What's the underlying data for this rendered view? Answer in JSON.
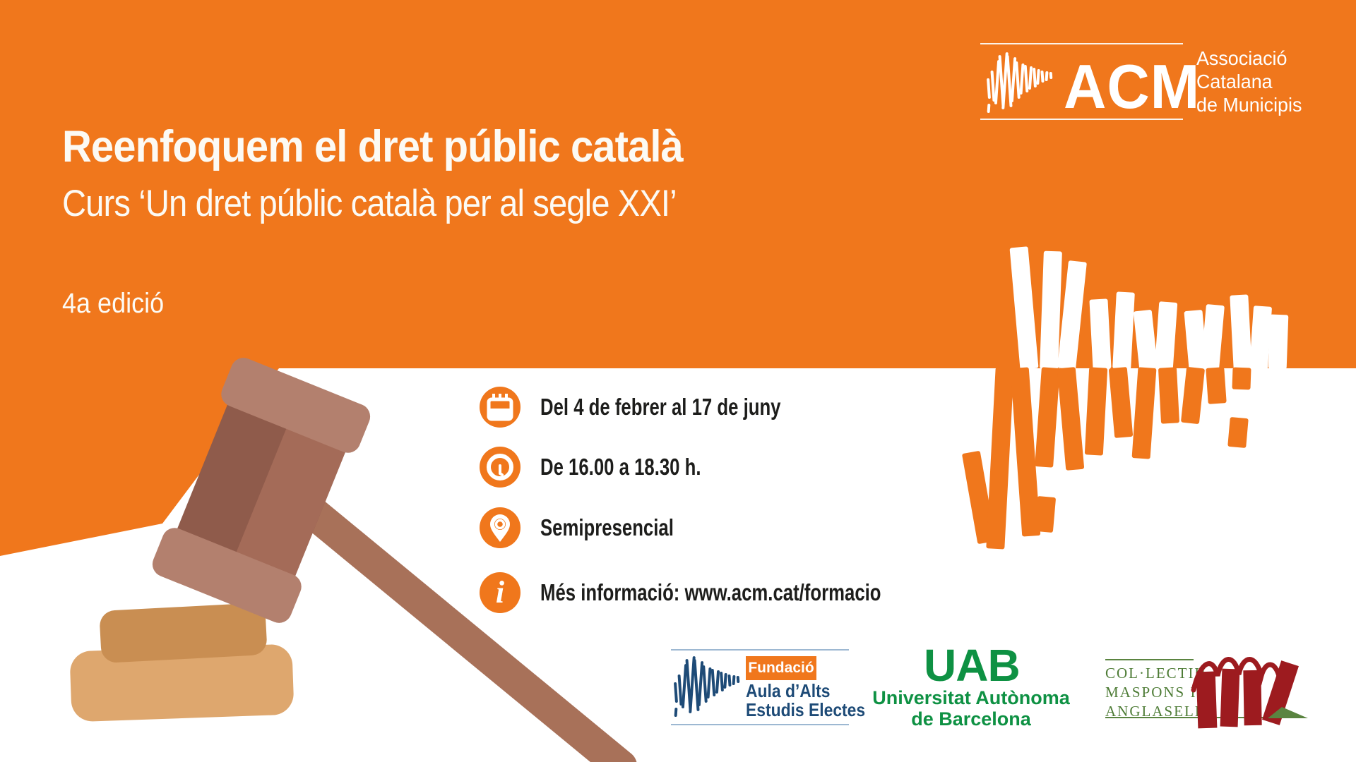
{
  "banner": {
    "title": "Reenfoquem el dret públic català",
    "subtitle": "Curs ‘Un dret públic català per al segle XXI’",
    "edition": "4a edició"
  },
  "acm_logo": {
    "acronym": "ACM",
    "org_lines": [
      "Associació",
      "Catalana",
      "de Municipis"
    ]
  },
  "details": [
    {
      "icon": "calendar-icon",
      "text": "Del 4 de febrer al 17 de juny"
    },
    {
      "icon": "clock-icon",
      "text": "De 16.00 a 18.30 h."
    },
    {
      "icon": "location-pin-icon",
      "text": "Semipresencial"
    },
    {
      "icon": "info-icon",
      "text": "Més informació: www.acm.cat/formacio"
    }
  ],
  "partners": {
    "fundacio": {
      "tag": "Fundació",
      "name_lines": [
        "Aula d’Alts",
        "Estudis Electes"
      ]
    },
    "uab": {
      "acronym": "UAB",
      "name_lines": [
        "Universitat Autònoma",
        "de Barcelona"
      ]
    },
    "collectiu": {
      "name_lines": [
        "COL·LECTIU",
        "MASPONS I",
        "ANGLASELL"
      ]
    }
  },
  "colors": {
    "brand_orange": "#F0771C",
    "text_light": "#FCFAF4",
    "text_dark": "#1D1D1B",
    "fundacio_navy": "#1E4B77",
    "uab_green": "#0E9143",
    "collectiu_green": "#4E7C36",
    "collectiu_book_red": "#9D1B1F",
    "gavel_brown_dark": "#8F5B4B",
    "gavel_brown_light": "#B3806E",
    "base_tan_top": "#C98E52",
    "base_tan_bottom": "#DEA76E"
  }
}
